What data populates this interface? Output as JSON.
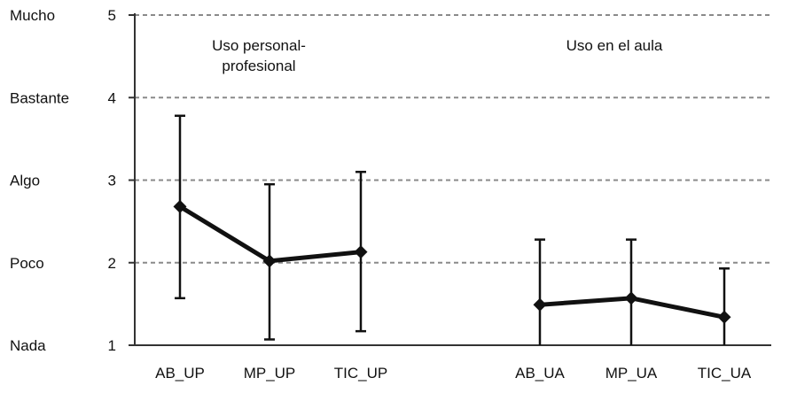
{
  "chart_data": {
    "type": "line",
    "y_scale_labels": [
      "Nada",
      "Poco",
      "Algo",
      "Bastante",
      "Mucho"
    ],
    "yticks": [
      1,
      2,
      3,
      4,
      5
    ],
    "ylim": [
      1,
      5
    ],
    "grid": "horizontal dashed",
    "panels": [
      {
        "title_line1": "Uso personal-",
        "title_line2": "profesional"
      },
      {
        "title_line1": "Uso en el aula",
        "title_line2": ""
      }
    ],
    "categories": [
      "AB_UP",
      "MP_UP",
      "TIC_UP",
      "AB_UA",
      "MP_UA",
      "TIC_UA"
    ],
    "series": [
      {
        "values": [
          2.68,
          2.02,
          2.13,
          null,
          null,
          null
        ],
        "error_low": [
          1.57,
          1.07,
          1.17,
          null,
          null,
          null
        ],
        "error_high": [
          3.78,
          2.95,
          3.1,
          null,
          null,
          null
        ]
      },
      {
        "values": [
          null,
          null,
          null,
          1.49,
          1.57,
          1.34
        ],
        "error_low": [
          null,
          null,
          null,
          1.0,
          1.0,
          1.0
        ],
        "error_high": [
          null,
          null,
          null,
          2.28,
          2.28,
          1.93
        ]
      }
    ],
    "colors": {
      "line": "#111111",
      "grid": "#8a8a8a",
      "axis": "#333333"
    }
  }
}
